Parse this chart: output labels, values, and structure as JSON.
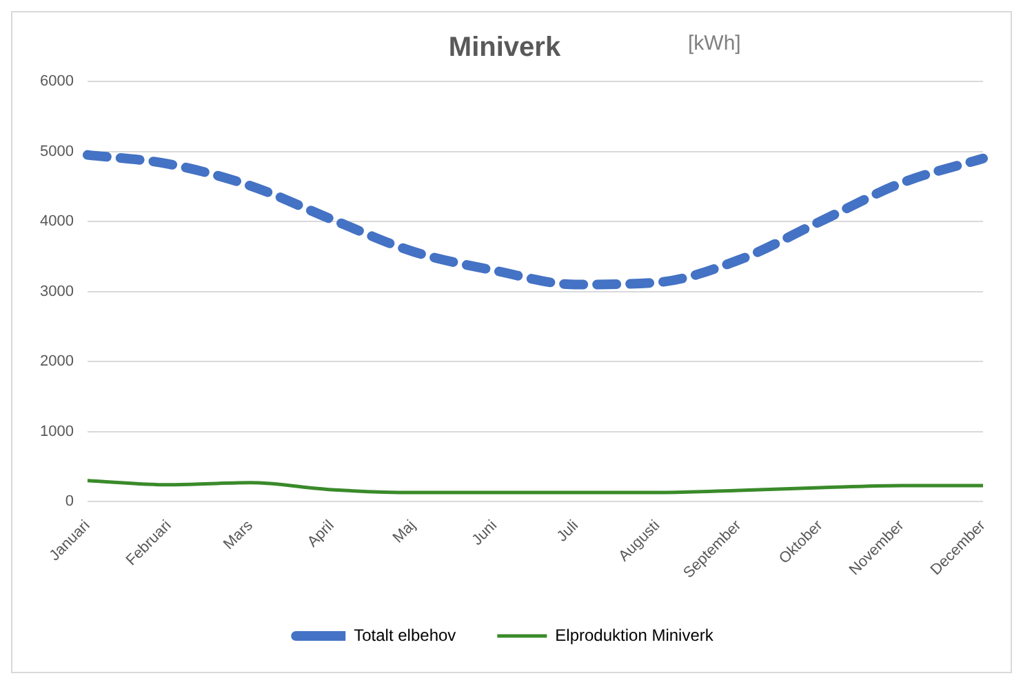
{
  "chart_data": {
    "type": "line",
    "title": "Miniverk",
    "annotations": [
      "[kWh]"
    ],
    "categories": [
      "Januari",
      "Februari",
      "Mars",
      "April",
      "Maj",
      "Juni",
      "Juli",
      "Augusti",
      "September",
      "Oktober",
      "November",
      "December"
    ],
    "series": [
      {
        "name": "Totalt elbehov",
        "color": "#4472c4",
        "line_style": "dashed",
        "values": [
          4950,
          4820,
          4510,
          4030,
          3570,
          3300,
          3100,
          3130,
          3450,
          4000,
          4550,
          4900
        ]
      },
      {
        "name": "Elproduktion Miniverk",
        "color": "#3a8a2a",
        "line_style": "solid",
        "values": [
          300,
          240,
          270,
          170,
          130,
          130,
          130,
          130,
          160,
          200,
          230,
          230
        ]
      }
    ],
    "ylim": [
      0,
      6000
    ],
    "yticks": [
      0,
      1000,
      2000,
      3000,
      4000,
      5000,
      6000
    ],
    "grid": "y",
    "legend": "bottom",
    "marker": "none"
  }
}
